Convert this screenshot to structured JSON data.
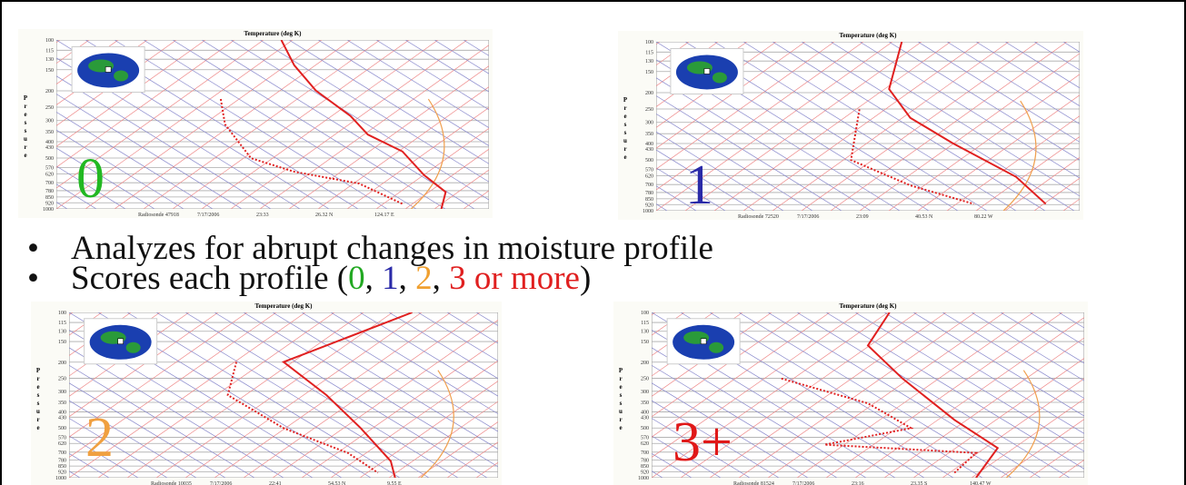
{
  "slide": {
    "bullets": [
      {
        "marker": "•",
        "parts": [
          {
            "text": "Analyzes for abrupt changes in moisture profile",
            "color": "#111111"
          }
        ]
      },
      {
        "marker": "•",
        "parts": [
          {
            "text": "Scores each profile (",
            "color": "#111111"
          },
          {
            "text": "0",
            "color": "#22a822"
          },
          {
            "text": ", ",
            "color": "#111111"
          },
          {
            "text": "1",
            "color": "#2a2aa8"
          },
          {
            "text": ", ",
            "color": "#111111"
          },
          {
            "text": "2",
            "color": "#f0a030"
          },
          {
            "text": ", ",
            "color": "#111111"
          },
          {
            "text": "3 or more",
            "color": "#e02020"
          },
          {
            "text": ")",
            "color": "#111111"
          }
        ]
      }
    ],
    "pressure_ticks": [
      100,
      115,
      130,
      150,
      200,
      250,
      300,
      350,
      400,
      430,
      500,
      570,
      620,
      700,
      780,
      850,
      920,
      1000
    ],
    "panels": [
      {
        "title": "Temperature (deg K)",
        "axis_label": "Pressure",
        "score": "0",
        "score_color": "#22b822",
        "footer": [
          "Radiosonde 47918",
          "7/17/2006",
          "23:33",
          "26.32 N",
          "124.17 E"
        ]
      },
      {
        "title": "Temperature (deg K)",
        "axis_label": "Pressure",
        "score": "1",
        "score_color": "#2a2aa8",
        "footer": [
          "Radiosonde 72520",
          "7/17/2006",
          "23:09",
          "40.53 N",
          "80.22 W"
        ]
      },
      {
        "title": "Temperature (deg K)",
        "axis_label": "Pressure",
        "score": "2",
        "score_color": "#f0a040",
        "footer": [
          "Radiosonde 10035",
          "7/17/2006",
          "22:41",
          "54.53 N",
          "9.55 E"
        ]
      },
      {
        "title": "Temperature (deg K)",
        "axis_label": "Pressure",
        "score": "3+",
        "score_color": "#e01818",
        "footer": [
          "Radiosonde 81524",
          "7/17/2006",
          "23:16",
          "23.35 S",
          "140.47 W"
        ]
      }
    ]
  }
}
